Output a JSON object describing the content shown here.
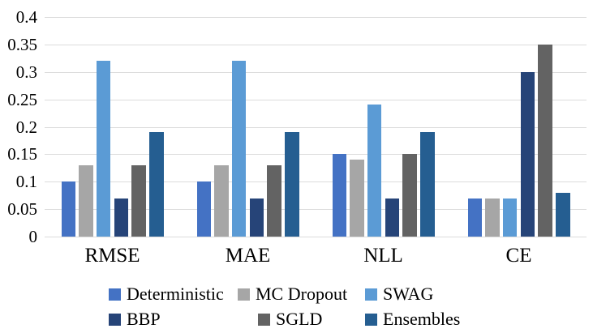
{
  "chart_data": {
    "type": "bar",
    "title": "",
    "xlabel": "",
    "ylabel": "",
    "categories": [
      "RMSE",
      "MAE",
      "NLL",
      "CE"
    ],
    "series": [
      {
        "name": "Deterministic",
        "color": "#4472C4",
        "values": [
          0.1,
          0.1,
          0.15,
          0.07
        ]
      },
      {
        "name": "MC Dropout",
        "color": "#A6A6A6",
        "values": [
          0.13,
          0.13,
          0.14,
          0.07
        ]
      },
      {
        "name": "SWAG",
        "color": "#5B9BD5",
        "values": [
          0.32,
          0.32,
          0.24,
          0.07
        ]
      },
      {
        "name": "BBP",
        "color": "#264478",
        "values": [
          0.07,
          0.07,
          0.07,
          0.3
        ]
      },
      {
        "name": "SGLD",
        "color": "#636363",
        "values": [
          0.13,
          0.13,
          0.15,
          0.35
        ]
      },
      {
        "name": "Ensembles",
        "color": "#255E91",
        "values": [
          0.19,
          0.19,
          0.19,
          0.08
        ]
      }
    ],
    "ylim": [
      0,
      0.4
    ],
    "ytick_step": 0.05,
    "yticks": [
      "0",
      "0.05",
      "0.1",
      "0.15",
      "0.2",
      "0.25",
      "0.3",
      "0.35",
      "0.4"
    ],
    "grid": true,
    "gridline_color": "#DCDCDC",
    "legend_position": "bottom",
    "legend_rows": [
      [
        "Deterministic",
        "MC Dropout",
        "SWAG"
      ],
      [
        "BBP",
        "SGLD",
        "Ensembles"
      ]
    ]
  }
}
